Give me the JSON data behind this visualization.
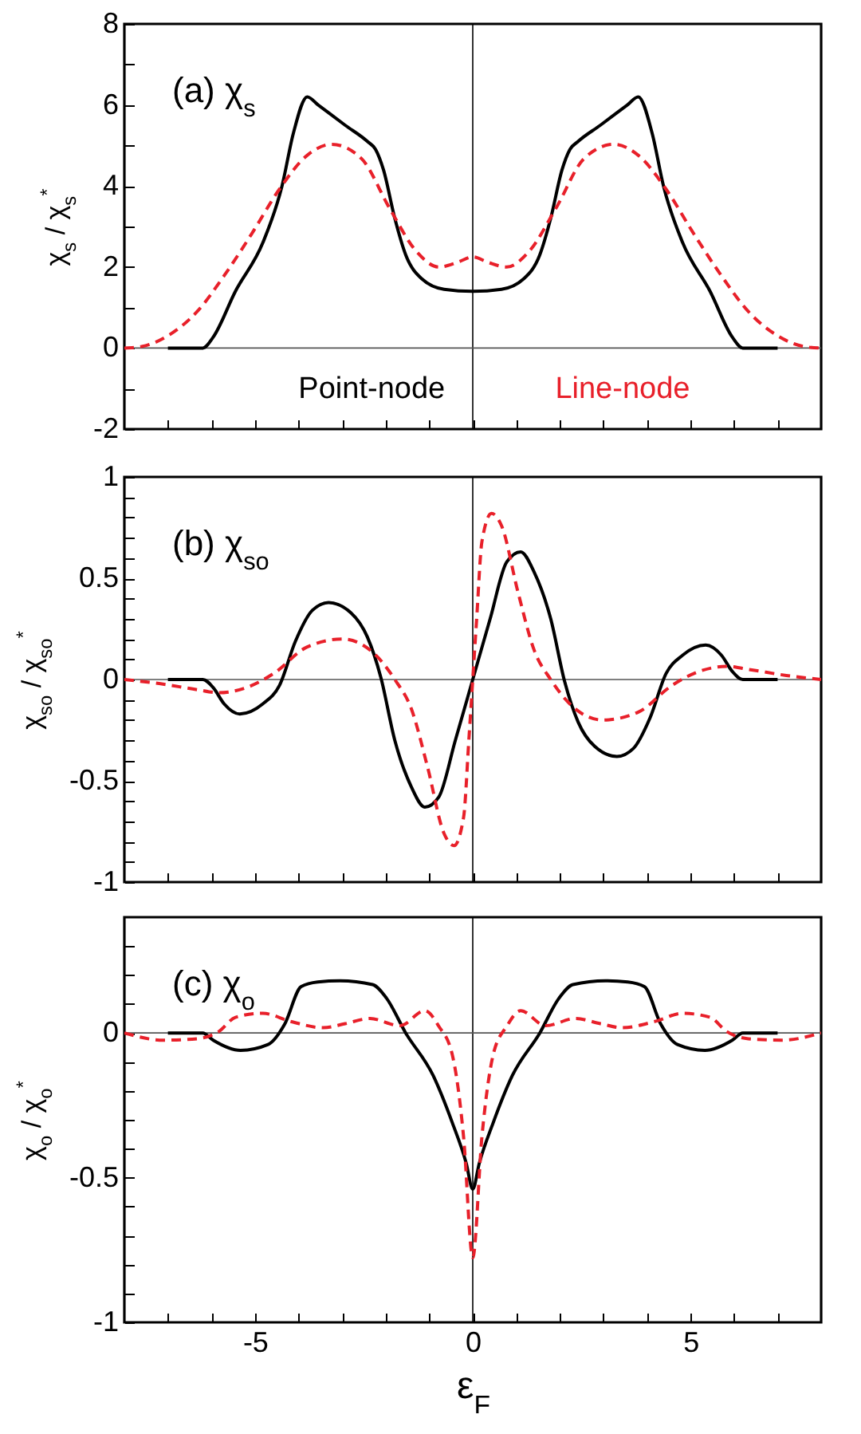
{
  "chart_data": [
    {
      "type": "line",
      "annotations": [
        "(a) χ$_{s}$"
      ],
      "ylabel": "χ$_{s}$ / χ$_{s}$$^{*}$",
      "tick_labels": "y",
      "xlim": [
        -8,
        8
      ],
      "xticks": [
        {
          "value": -7,
          "label": null
        },
        {
          "value": -6,
          "label": null
        },
        -5,
        {
          "value": -4,
          "label": null
        },
        {
          "value": -3,
          "label": null
        },
        {
          "value": -2,
          "label": null
        },
        {
          "value": -1,
          "label": null
        },
        0,
        {
          "value": 1,
          "label": null
        },
        {
          "value": 2,
          "label": null
        },
        {
          "value": 3,
          "label": null
        },
        {
          "value": 4,
          "label": null
        },
        5,
        {
          "value": 6,
          "label": null
        },
        {
          "value": 7,
          "label": null
        }
      ],
      "ylim": [
        -2,
        8
      ],
      "yticks": [
        -2,
        {
          "value": -1,
          "label": null
        },
        0,
        {
          "value": 1,
          "label": null
        },
        2,
        {
          "value": 3,
          "label": null
        },
        4,
        {
          "value": 5,
          "label": null
        },
        6,
        {
          "value": 7,
          "label": null
        },
        8
      ],
      "ref_lines": [
        {
          "axis": "x",
          "value": 0,
          "color": "#000000"
        },
        {
          "axis": "y",
          "value": 0,
          "color": "#555555"
        }
      ],
      "series": [
        {
          "name": "Point-node",
          "color": "#000000",
          "line_style": "solid",
          "x": [
            -7,
            -6.2,
            -5.96,
            -5.45,
            -4.82,
            -4.38,
            -4.12,
            -3.8,
            -3.55,
            -2.93,
            -2.42,
            -2.23,
            -2.05,
            -1.79,
            -1.54,
            -1.16,
            -0.66,
            0,
            0.66,
            1.16,
            1.54,
            1.79,
            2.05,
            2.23,
            2.42,
            2.93,
            3.55,
            3.8,
            4.12,
            4.38,
            4.82,
            5.45,
            5.96,
            6.2,
            7
          ],
          "values": [
            0,
            0,
            0.27,
            1.4,
            2.6,
            4.0,
            5.3,
            6.2,
            6.0,
            5.5,
            5.1,
            4.9,
            4.4,
            3.2,
            2.3,
            1.7,
            1.45,
            1.4,
            1.45,
            1.7,
            2.3,
            3.2,
            4.4,
            4.9,
            5.1,
            5.5,
            6.0,
            6.2,
            5.3,
            4.0,
            2.6,
            1.4,
            0.27,
            0,
            0
          ]
        },
        {
          "name": "Line-node",
          "color": "#e8202a",
          "line_style": "dashed",
          "x": [
            -8,
            -7.6,
            -6.96,
            -6.33,
            -5.7,
            -5.07,
            -4.44,
            -3.81,
            -3.24,
            -2.55,
            -1.92,
            -1.29,
            -0.78,
            -0.34,
            0,
            0.34,
            0.78,
            1.29,
            1.92,
            2.55,
            3.24,
            3.81,
            4.44,
            5.07,
            5.7,
            6.33,
            6.96,
            7.6,
            8
          ],
          "values": [
            0,
            0.04,
            0.33,
            0.9,
            1.8,
            2.83,
            3.92,
            4.75,
            5.03,
            4.67,
            3.47,
            2.38,
            2.0,
            2.12,
            2.25,
            2.12,
            2.0,
            2.38,
            3.47,
            4.67,
            5.03,
            4.75,
            3.92,
            2.83,
            1.8,
            0.9,
            0.33,
            0.04,
            0
          ]
        }
      ]
    },
    {
      "type": "line",
      "annotations": [
        "(b) χ$_{so}$"
      ],
      "ylabel": "χ$_{so}$ / χ$_{so}$$^{*}$",
      "tick_labels": "y",
      "xlim": [
        -8,
        8
      ],
      "xticks": [
        {
          "value": -7,
          "label": null
        },
        {
          "value": -6,
          "label": null
        },
        -5,
        {
          "value": -4,
          "label": null
        },
        {
          "value": -3,
          "label": null
        },
        {
          "value": -2,
          "label": null
        },
        {
          "value": -1,
          "label": null
        },
        0,
        {
          "value": 1,
          "label": null
        },
        {
          "value": 2,
          "label": null
        },
        {
          "value": 3,
          "label": null
        },
        {
          "value": 4,
          "label": null
        },
        5,
        {
          "value": 6,
          "label": null
        },
        {
          "value": 7,
          "label": null
        }
      ],
      "ylim": [
        -1,
        1
      ],
      "yticks": [
        -1,
        {
          "value": -0.9,
          "label": null
        },
        {
          "value": -0.8,
          "label": null
        },
        {
          "value": -0.7,
          "label": null
        },
        {
          "value": -0.6,
          "label": null
        },
        -0.5,
        {
          "value": -0.4,
          "label": null
        },
        {
          "value": -0.3,
          "label": null
        },
        {
          "value": -0.2,
          "label": null
        },
        {
          "value": -0.1,
          "label": null
        },
        0,
        {
          "value": 0.1,
          "label": null
        },
        {
          "value": 0.2,
          "label": null
        },
        {
          "value": 0.3,
          "label": null
        },
        {
          "value": 0.4,
          "label": null
        },
        0.5,
        {
          "value": 0.6,
          "label": null
        },
        {
          "value": 0.7,
          "label": null
        },
        {
          "value": 0.8,
          "label": null
        },
        {
          "value": 0.9,
          "label": null
        },
        1
      ],
      "ref_lines": [
        {
          "axis": "x",
          "value": 0,
          "color": "#000000"
        },
        {
          "axis": "y",
          "value": 0,
          "color": "#555555"
        }
      ],
      "series": [
        {
          "color": "#000000",
          "line_style": "solid",
          "x": [
            -7,
            -6.2,
            -5.96,
            -5.71,
            -5.35,
            -4.82,
            -4.44,
            -4.07,
            -3.69,
            -3.31,
            -2.8,
            -2.42,
            -2.11,
            -1.79,
            -1.41,
            -1.1,
            -0.78,
            -0.4,
            0,
            0.4,
            0.78,
            1.1,
            1.41,
            1.79,
            2.11,
            2.42,
            2.8,
            3.31,
            3.69,
            4.07,
            4.44,
            4.82,
            5.35,
            5.71,
            5.96,
            6.2,
            7
          ],
          "values": [
            0,
            0,
            -0.04,
            -0.12,
            -0.17,
            -0.12,
            -0.03,
            0.19,
            0.34,
            0.38,
            0.33,
            0.21,
            0.01,
            -0.3,
            -0.53,
            -0.63,
            -0.58,
            -0.3,
            0,
            0.3,
            0.58,
            0.63,
            0.53,
            0.3,
            -0.01,
            -0.21,
            -0.33,
            -0.38,
            -0.34,
            -0.19,
            0.03,
            0.12,
            0.17,
            0.12,
            0.04,
            0,
            0
          ]
        },
        {
          "color": "#e8202a",
          "line_style": "dashed",
          "x": [
            -8,
            -7.2,
            -6.33,
            -5.83,
            -5.2,
            -4.57,
            -3.81,
            -2.99,
            -2.3,
            -1.79,
            -1.41,
            -1.04,
            -0.66,
            -0.43,
            -0.21,
            -0.09,
            0,
            0.09,
            0.21,
            0.43,
            0.66,
            1.04,
            1.41,
            1.79,
            2.3,
            2.99,
            3.81,
            4.57,
            5.2,
            5.83,
            6.33,
            7.2,
            8
          ],
          "values": [
            0,
            -0.02,
            -0.05,
            -0.065,
            -0.04,
            0.03,
            0.16,
            0.2,
            0.135,
            0,
            -0.145,
            -0.43,
            -0.76,
            -0.82,
            -0.68,
            -0.3,
            0,
            0.3,
            0.68,
            0.82,
            0.76,
            0.43,
            0.145,
            0,
            -0.135,
            -0.2,
            -0.16,
            -0.03,
            0.04,
            0.065,
            0.05,
            0.02,
            0
          ]
        }
      ]
    },
    {
      "type": "line",
      "annotations": [
        "(c) χ$_{o}$"
      ],
      "ylabel": "χ$_{o}$ / χ$_{o}$$^{*}$",
      "xlabel": "ε$_{F}$",
      "xlim": [
        -8,
        8
      ],
      "xticks": [
        {
          "value": -7,
          "label": null
        },
        {
          "value": -6,
          "label": null
        },
        -5,
        {
          "value": -4,
          "label": null
        },
        {
          "value": -3,
          "label": null
        },
        {
          "value": -2,
          "label": null
        },
        {
          "value": -1,
          "label": null
        },
        0,
        {
          "value": 1,
          "label": null
        },
        {
          "value": 2,
          "label": null
        },
        {
          "value": 3,
          "label": null
        },
        {
          "value": 4,
          "label": null
        },
        5,
        {
          "value": 6,
          "label": null
        },
        {
          "value": 7,
          "label": null
        }
      ],
      "ylim": [
        -1,
        0.4
      ],
      "yticks": [
        -1,
        {
          "value": -0.9,
          "label": null
        },
        {
          "value": -0.8,
          "label": null
        },
        {
          "value": -0.7,
          "label": null
        },
        {
          "value": -0.6,
          "label": null
        },
        -0.5,
        {
          "value": -0.4,
          "label": null
        },
        {
          "value": -0.3,
          "label": null
        },
        {
          "value": -0.2,
          "label": null
        },
        {
          "value": -0.1,
          "label": null
        },
        0,
        {
          "value": 0.1,
          "label": null
        },
        {
          "value": 0.2,
          "label": null
        },
        {
          "value": 0.3,
          "label": null
        }
      ],
      "ref_lines": [
        {
          "axis": "x",
          "value": 0,
          "color": "#000000"
        },
        {
          "axis": "y",
          "value": 0,
          "color": "#555555"
        }
      ],
      "series": [
        {
          "color": "#000000",
          "line_style": "solid",
          "x": [
            -7,
            -6.2,
            -5.96,
            -5.33,
            -4.7,
            -4.32,
            -3.94,
            -3.56,
            -3.05,
            -2.3,
            -1.98,
            -1.54,
            -0.91,
            -0.47,
            -0.15,
            0,
            0.15,
            0.47,
            0.91,
            1.54,
            1.98,
            2.3,
            3.05,
            3.56,
            3.94,
            4.32,
            4.7,
            5.33,
            5.96,
            6.2,
            7
          ],
          "values": [
            0,
            0,
            -0.025,
            -0.06,
            -0.04,
            0.03,
            0.16,
            0.176,
            0.18,
            0.167,
            0.12,
            0,
            -0.147,
            -0.31,
            -0.45,
            -0.54,
            -0.45,
            -0.31,
            -0.147,
            0,
            0.12,
            0.167,
            0.18,
            0.176,
            0.16,
            0.03,
            -0.04,
            -0.06,
            -0.025,
            0,
            0
          ]
        },
        {
          "color": "#e8202a",
          "line_style": "dashed",
          "x": [
            -8,
            -7.1,
            -6.33,
            -5.83,
            -5.45,
            -4.82,
            -4.19,
            -3.43,
            -2.93,
            -2.36,
            -1.67,
            -1.1,
            -0.78,
            -0.47,
            -0.21,
            0,
            0.21,
            0.47,
            0.78,
            1.1,
            1.67,
            2.36,
            2.93,
            3.43,
            4.19,
            4.82,
            5.45,
            5.83,
            6.33,
            7.1,
            8
          ],
          "values": [
            0,
            -0.025,
            -0.02,
            0.005,
            0.054,
            0.068,
            0.04,
            0.018,
            0.032,
            0.05,
            0.025,
            0.077,
            0.023,
            -0.075,
            -0.36,
            -0.776,
            -0.36,
            -0.075,
            0.023,
            0.077,
            0.025,
            0.05,
            0.032,
            0.018,
            0.04,
            0.068,
            0.054,
            0.005,
            -0.02,
            -0.025,
            0
          ]
        }
      ]
    }
  ]
}
